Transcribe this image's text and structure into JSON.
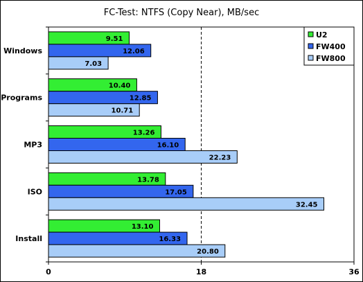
{
  "chart_data": {
    "type": "bar",
    "orientation": "horizontal",
    "title": "FC-Test: NTFS (Copy Near), MB/sec",
    "categories": [
      "Windows",
      "Programs",
      "MP3",
      "ISO",
      "Install"
    ],
    "series": [
      {
        "name": "U2",
        "color": "#33ee33",
        "values": [
          9.51,
          10.4,
          13.26,
          13.78,
          13.1
        ]
      },
      {
        "name": "FW400",
        "color": "#3366ee",
        "values": [
          12.06,
          12.85,
          16.1,
          17.05,
          16.33
        ]
      },
      {
        "name": "FW800",
        "color": "#a8cdf8",
        "values": [
          7.03,
          10.71,
          22.23,
          32.45,
          20.8
        ]
      }
    ],
    "xlim": [
      0,
      36
    ],
    "xticks": [
      "0",
      "18",
      "36"
    ],
    "reference_line": 18,
    "legend_position": "top-right",
    "grid": false
  }
}
